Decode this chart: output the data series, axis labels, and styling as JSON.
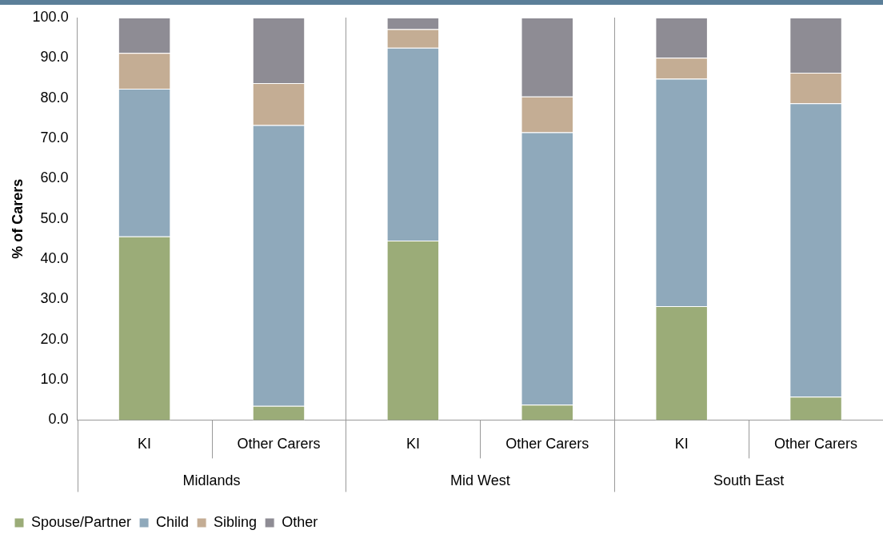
{
  "chart_data": {
    "type": "bar",
    "stacked": true,
    "ylabel": "% of Carers",
    "categories": [
      "KI",
      "Other Carers",
      "KI",
      "Other Carers",
      "KI",
      "Other Carers"
    ],
    "annotations": [
      "Midlands",
      "Mid West",
      "South East"
    ],
    "series": [
      {
        "name": "Spouse/Partner",
        "color": "#9bac78",
        "values": [
          45.6,
          3.5,
          44.6,
          3.8,
          28.3,
          5.8
        ]
      },
      {
        "name": "Child",
        "color": "#8fa9bb",
        "values": [
          36.7,
          69.8,
          47.9,
          67.7,
          56.5,
          72.9
        ]
      },
      {
        "name": "Sibling",
        "color": "#c4ad94",
        "values": [
          8.9,
          10.4,
          4.6,
          8.9,
          5.2,
          7.6
        ]
      },
      {
        "name": "Other",
        "color": "#8e8c94",
        "values": [
          8.8,
          16.3,
          2.9,
          19.6,
          10.0,
          13.7
        ]
      }
    ],
    "ylim": [
      0,
      100
    ],
    "yticks": [
      {
        "value": 0,
        "label": "0.0"
      },
      {
        "value": 10,
        "label": "10.0"
      },
      {
        "value": 20,
        "label": "20.0"
      },
      {
        "value": 30,
        "label": "30.0"
      },
      {
        "value": 40,
        "label": "40.0"
      },
      {
        "value": 50,
        "label": "50.0"
      },
      {
        "value": 60,
        "label": "60.0"
      },
      {
        "value": 70,
        "label": "70.0"
      },
      {
        "value": 80,
        "label": "80.0"
      },
      {
        "value": 90,
        "label": "90.0"
      },
      {
        "value": 100,
        "label": "100.0"
      }
    ],
    "grid": false,
    "legend": "bottom left"
  }
}
